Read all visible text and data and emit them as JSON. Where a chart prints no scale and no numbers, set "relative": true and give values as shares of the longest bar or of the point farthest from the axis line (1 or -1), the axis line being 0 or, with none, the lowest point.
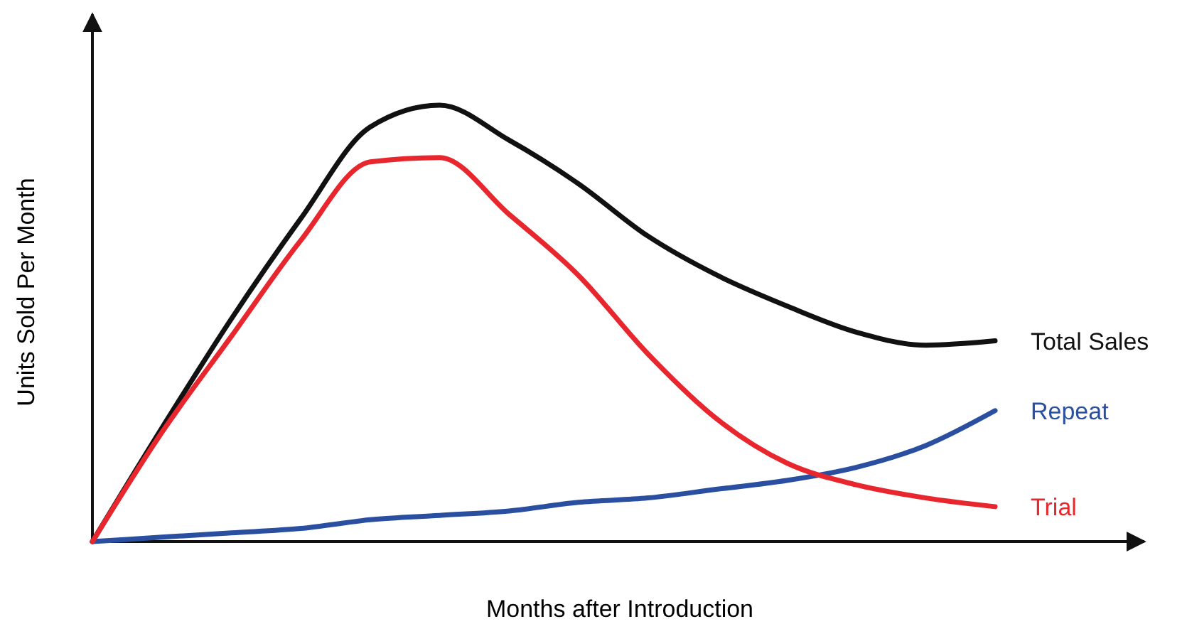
{
  "chart_data": {
    "type": "line",
    "relative": true,
    "xlabel": "Months after Introduction",
    "ylabel": "Units Sold Per Month",
    "categories": [
      null,
      null,
      null,
      null,
      null,
      null,
      null,
      null,
      null,
      null,
      null,
      null,
      null,
      null
    ],
    "series": [
      {
        "name": "Total Sales",
        "color": "#111111",
        "values": [
          0,
          0.26,
          0.51,
          0.74,
          0.95,
          1,
          0.92,
          0.82,
          0.7,
          0.61,
          0.54,
          0.48,
          0.45,
          0.46
        ]
      },
      {
        "name": "Repeat",
        "color": "#2a4fa0",
        "values": [
          0,
          0.01,
          0.02,
          0.03,
          0.05,
          0.06,
          0.07,
          0.09,
          0.1,
          0.12,
          0.14,
          0.17,
          0.22,
          0.3
        ]
      },
      {
        "name": "Trial",
        "color": "#e8262d",
        "values": [
          0,
          0.25,
          0.47,
          0.69,
          0.87,
          0.88,
          0.75,
          0.61,
          0.43,
          0.28,
          0.18,
          0.13,
          0.1,
          0.08
        ]
      }
    ]
  }
}
